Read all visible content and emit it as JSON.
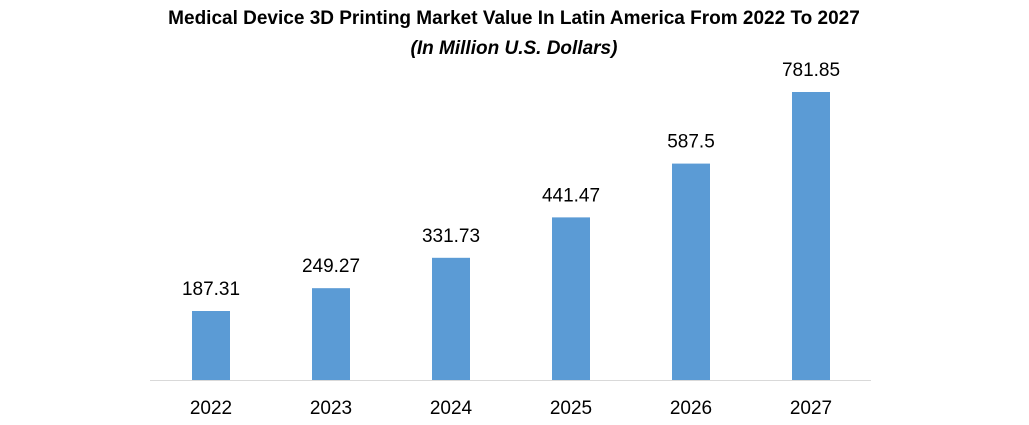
{
  "chart_data": {
    "type": "bar",
    "title": "Medical Device 3D Printing Market Value In Latin America From 2022 To 2027",
    "subtitle": "(In Million U.S. Dollars)",
    "categories": [
      "2022",
      "2023",
      "2024",
      "2025",
      "2026",
      "2027"
    ],
    "values": [
      187.31,
      249.27,
      331.73,
      441.47,
      587.5,
      781.85
    ],
    "color": "#5b9bd5"
  }
}
